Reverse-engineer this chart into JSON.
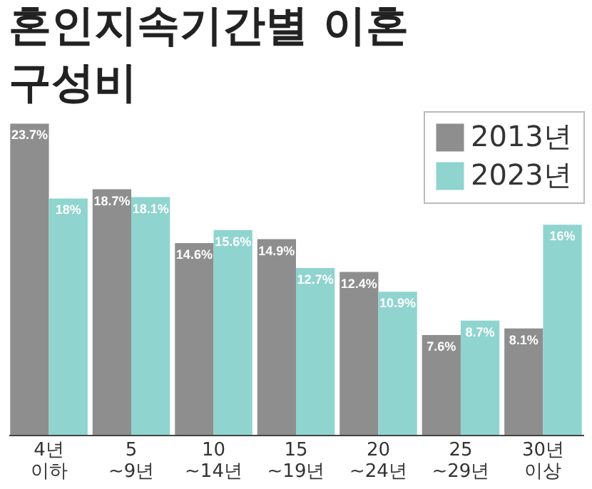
{
  "chart_data": {
    "type": "bar",
    "title": "혼인지속기간별 이혼 구성비",
    "categories": [
      "4년\n이하",
      "5\n~9년",
      "10\n~14년",
      "15\n~19년",
      "20\n~24년",
      "25\n~29년",
      "30년\n이상"
    ],
    "series": [
      {
        "name": "2013년",
        "color": "#8e8e8e",
        "values": [
          23.7,
          18.7,
          14.6,
          14.9,
          12.4,
          7.6,
          8.1
        ],
        "value_labels": [
          "23.7%",
          "18.7%",
          "14.6%",
          "14.9%",
          "12.4%",
          "7.6%",
          "8.1%"
        ]
      },
      {
        "name": "2023년",
        "color": "#8fd4cf",
        "values": [
          18,
          18.1,
          15.6,
          12.7,
          10.9,
          8.7,
          16
        ],
        "value_labels": [
          "18%",
          "18.1%",
          "15.6%",
          "12.7%",
          "10.9%",
          "8.7%",
          "16%"
        ]
      }
    ],
    "legend": "top right"
  }
}
